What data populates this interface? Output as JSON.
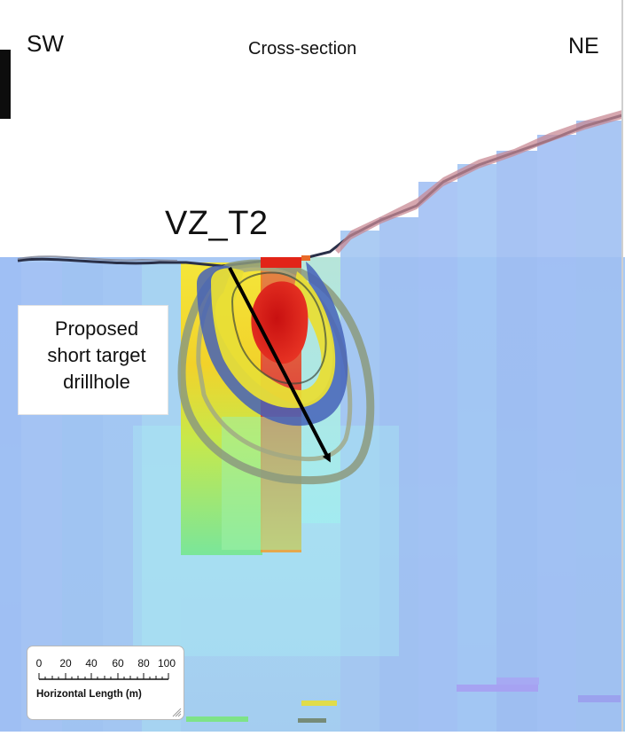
{
  "figure": {
    "title": "Cross-section",
    "orientation_left": "SW",
    "orientation_right": "NE",
    "target_label": "VZ_T2",
    "callout": {
      "lines": [
        "Proposed",
        "short target",
        "drillhole"
      ]
    },
    "scale_bar": {
      "ticks": [
        "0",
        "20",
        "40",
        "60",
        "80",
        "100"
      ],
      "axis_title": "Horizontal Length (m)"
    },
    "colors": {
      "sky": "#ffffff",
      "background_model": "#a8c8f0",
      "deep_model": "#a6d2f4",
      "anomaly_core": "#e8201a",
      "anomaly_mid": "#f4e22a",
      "anomaly_outer": "#72e070",
      "isosurface_outer": "#8a9a7c",
      "isosurface_blue": "#4a64b8",
      "drillhole": "#000000"
    }
  }
}
